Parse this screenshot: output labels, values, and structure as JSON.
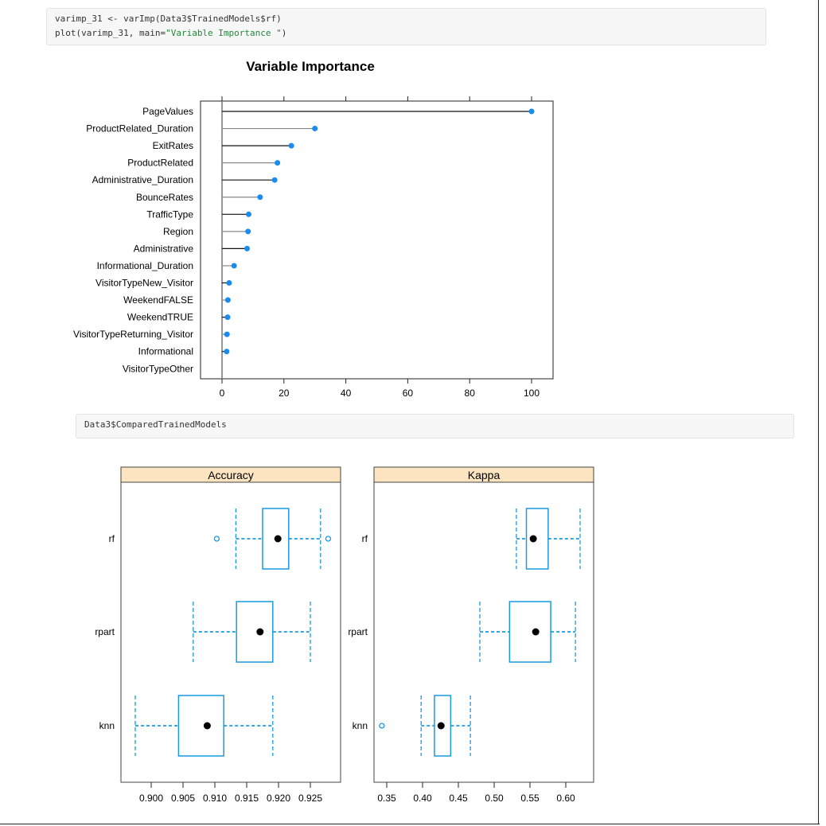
{
  "cells": [
    {
      "lines": [
        "varimp_31 <- varImp(Data3$TrainedModels$rf)"
      ],
      "line2_prefix": "plot(varimp_31, main=",
      "line2_string": "\"Variable Importance \"",
      "line2_suffix": ")"
    },
    {
      "lines": [
        "Data3$ComparedTrainedModels"
      ]
    }
  ],
  "chart_data": [
    {
      "type": "dotplot",
      "title": "Variable Importance",
      "xlim": [
        -7,
        107
      ],
      "xticks": [
        0,
        20,
        40,
        60,
        80,
        100
      ],
      "point_color": "#1a8cf0",
      "categories": [
        "PageValues",
        "ProductRelated_Duration",
        "ExitRates",
        "ProductRelated",
        "Administrative_Duration",
        "BounceRates",
        "TrafficType",
        "Region",
        "Administrative",
        "Informational_Duration",
        "VisitorTypeNew_Visitor",
        "WeekendFALSE",
        "WeekendTRUE",
        "VisitorTypeReturning_Visitor",
        "Informational",
        "VisitorTypeOther"
      ],
      "values": [
        100,
        30.0,
        22.4,
        17.9,
        17.0,
        12.3,
        8.6,
        8.4,
        8.1,
        3.9,
        2.3,
        1.9,
        1.8,
        1.6,
        1.5,
        null
      ]
    },
    {
      "type": "boxplot",
      "color": "#1a9ae0",
      "strip_color": "#fde4c0",
      "categories": [
        "rf",
        "rpart",
        "knn"
      ],
      "panels": [
        {
          "title": "Accuracy",
          "xlim": [
            0.8955,
            0.9295
          ],
          "xticks": [
            "0.900",
            "0.905",
            "0.910",
            "0.915",
            "0.920",
            "0.925"
          ],
          "boxes": [
            {
              "name": "rf",
              "whisker_low": 0.9133,
              "q1": 0.9175,
              "median": 0.9199,
              "q3": 0.9216,
              "whisker_high": 0.9266,
              "outliers": [
                0.9103,
                0.9278
              ]
            },
            {
              "name": "rpart",
              "whisker_low": 0.9066,
              "q1": 0.9134,
              "median": 0.9171,
              "q3": 0.9191,
              "whisker_high": 0.925,
              "outliers": []
            },
            {
              "name": "knn",
              "whisker_low": 0.8975,
              "q1": 0.9043,
              "median": 0.9088,
              "q3": 0.9114,
              "whisker_high": 0.9191,
              "outliers": []
            }
          ]
        },
        {
          "title": "Kappa",
          "xlim": [
            0.3075,
            0.6425
          ],
          "xticks": [
            "0.35",
            "0.40",
            "0.45",
            "0.50",
            "0.55",
            "0.60"
          ],
          "boxes": [
            {
              "name": "rf",
              "whisker_low": 0.531,
              "q1": 0.545,
              "median": 0.5546,
              "q3": 0.5754,
              "whisker_high": 0.62,
              "outliers": []
            },
            {
              "name": "rpart",
              "whisker_low": 0.48,
              "q1": 0.5215,
              "median": 0.558,
              "q3": 0.579,
              "whisker_high": 0.6135,
              "outliers": []
            },
            {
              "name": "knn",
              "whisker_low": 0.398,
              "q1": 0.4166,
              "median": 0.4258,
              "q3": 0.4393,
              "whisker_high": 0.4668,
              "outliers": [
                0.3432
              ]
            }
          ]
        }
      ]
    }
  ]
}
